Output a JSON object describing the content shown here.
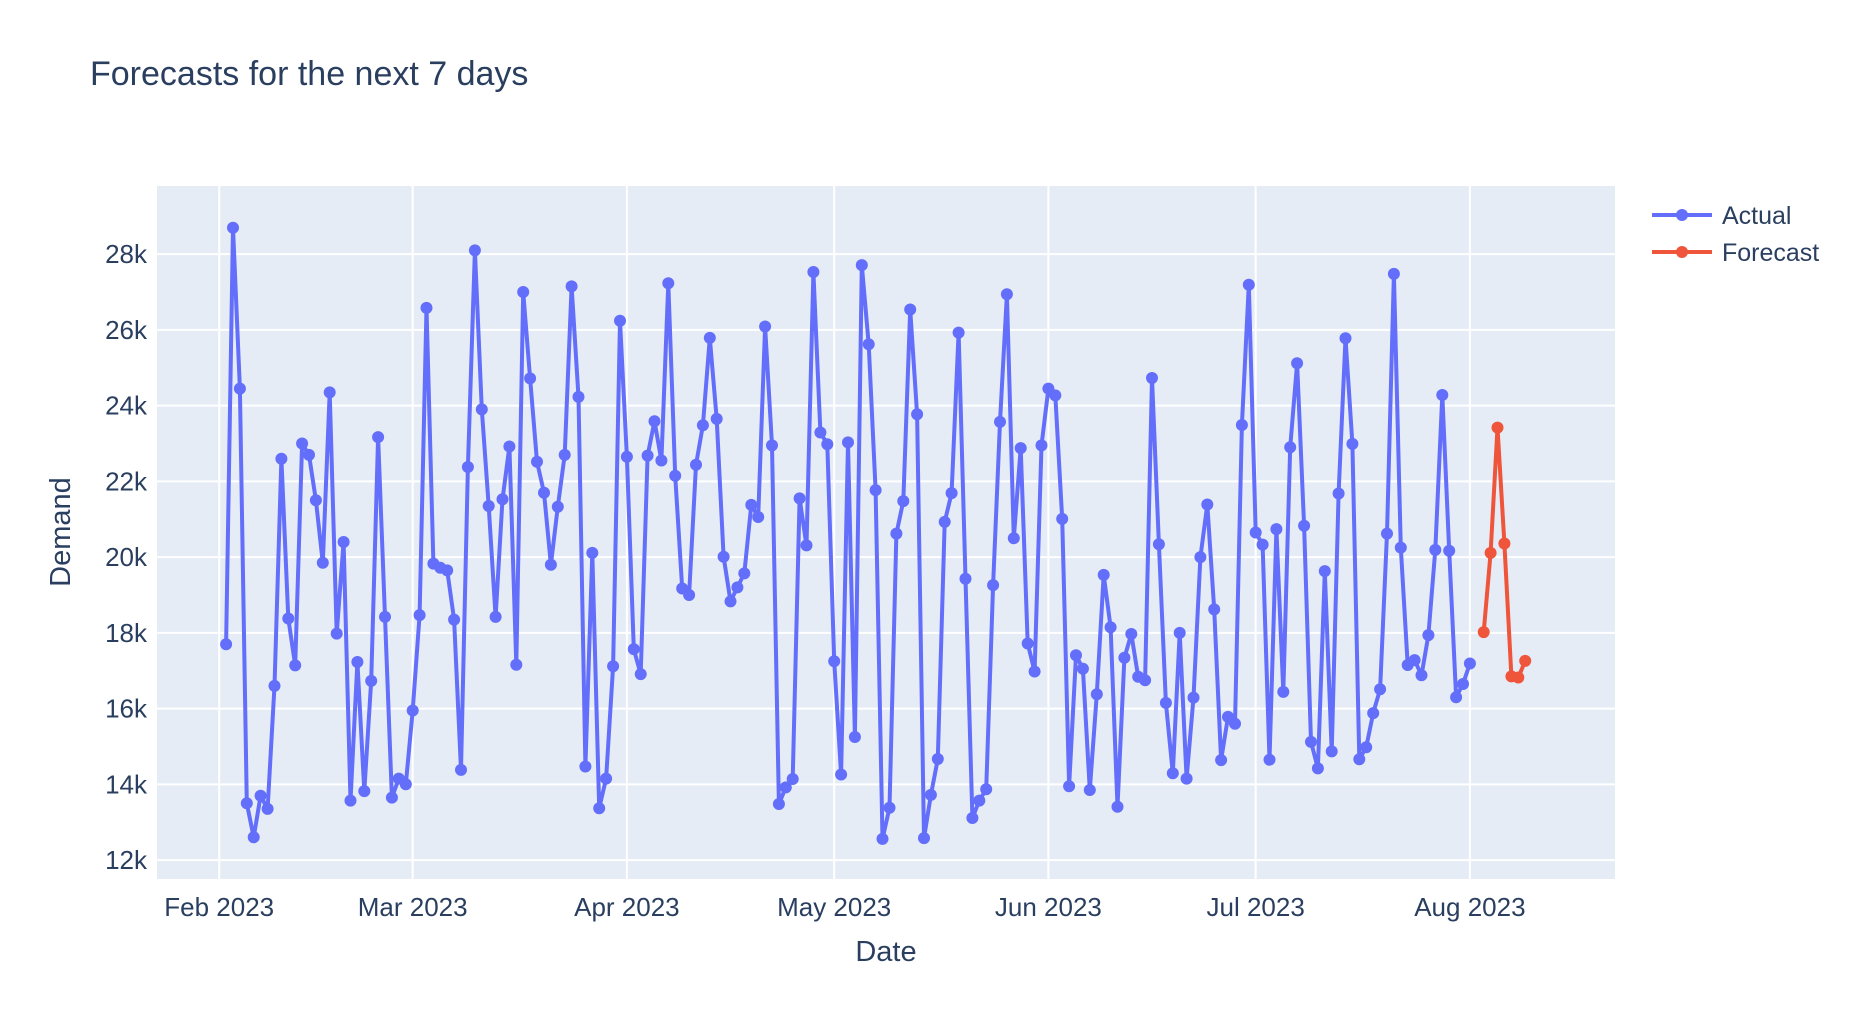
{
  "chart_data": {
    "type": "line",
    "title": "Forecasts for the next 7 days",
    "xlabel": "Date",
    "ylabel": "Demand",
    "x_range": [
      "2023-01-23",
      "2023-08-22"
    ],
    "ylim": [
      11500,
      29800
    ],
    "y_ticks": [
      12000,
      14000,
      16000,
      18000,
      20000,
      22000,
      24000,
      26000,
      28000
    ],
    "y_tick_labels": [
      "12k",
      "14k",
      "16k",
      "18k",
      "20k",
      "22k",
      "24k",
      "26k",
      "28k"
    ],
    "x_ticks": [
      "2023-02-01",
      "2023-03-01",
      "2023-04-01",
      "2023-05-01",
      "2023-06-01",
      "2023-07-01",
      "2023-08-01"
    ],
    "x_tick_labels": [
      "Feb 2023",
      "Mar 2023",
      "Apr 2023",
      "May 2023",
      "Jun 2023",
      "Jul 2023",
      "Aug 2023"
    ],
    "grid": true,
    "legend_position": "top-right",
    "series": [
      {
        "name": "Actual",
        "color": "#636efa",
        "start_date": "2023-02-02",
        "values": [
          17700,
          28700,
          24450,
          13500,
          12600,
          13700,
          13350,
          16600,
          22600,
          18380,
          17140,
          23000,
          22700,
          21500,
          19850,
          24350,
          17980,
          20400,
          13570,
          17230,
          13820,
          16730,
          23170,
          18420,
          13650,
          14150,
          14000,
          15950,
          18470,
          26580,
          19830,
          19720,
          19650,
          18350,
          14380,
          22380,
          28100,
          23900,
          21350,
          18420,
          21530,
          22920,
          17160,
          27000,
          24720,
          22520,
          21700,
          19800,
          21330,
          22700,
          27150,
          24230,
          14470,
          20110,
          13370,
          14150,
          17120,
          26240,
          22650,
          17570,
          16910,
          22680,
          23590,
          22550,
          27230,
          22150,
          19170,
          19000,
          22440,
          23480,
          25790,
          23650,
          20010,
          18830,
          19200,
          19570,
          21380,
          21060,
          26090,
          22950,
          13480,
          13920,
          14140,
          21550,
          20310,
          27530,
          23290,
          22980,
          17250,
          14260,
          23030,
          15250,
          27710,
          25620,
          21770,
          12560,
          13380,
          20620,
          21480,
          26540,
          23770,
          12580,
          13720,
          14670,
          20930,
          21690,
          25930,
          19430,
          13110,
          13570,
          13870,
          19260,
          23570,
          26940,
          20500,
          22880,
          17720,
          16980,
          22950,
          24450,
          24270,
          21010,
          13950,
          17410,
          17050,
          13850,
          16380,
          19530,
          18150,
          13410,
          17340,
          17970,
          16840,
          16750,
          24730,
          20340,
          16150,
          14290,
          18000,
          14150,
          16290,
          20000,
          21390,
          18620,
          14640,
          15780,
          15600,
          23490,
          27190,
          20650,
          20330,
          14650,
          20740,
          16440,
          22900,
          25120,
          20830,
          15120,
          14420,
          19630,
          14870,
          21680,
          25780,
          22990,
          14660,
          14980,
          15880,
          16510,
          20620,
          27480,
          20250,
          17150,
          17280,
          16880,
          17940,
          20190,
          24280,
          20170,
          16300,
          16650,
          17190
        ]
      },
      {
        "name": "Forecast",
        "color": "#ef553b",
        "start_date": "2023-08-03",
        "values": [
          18020,
          20110,
          23420,
          20360,
          16850,
          16820,
          17260
        ]
      }
    ]
  }
}
